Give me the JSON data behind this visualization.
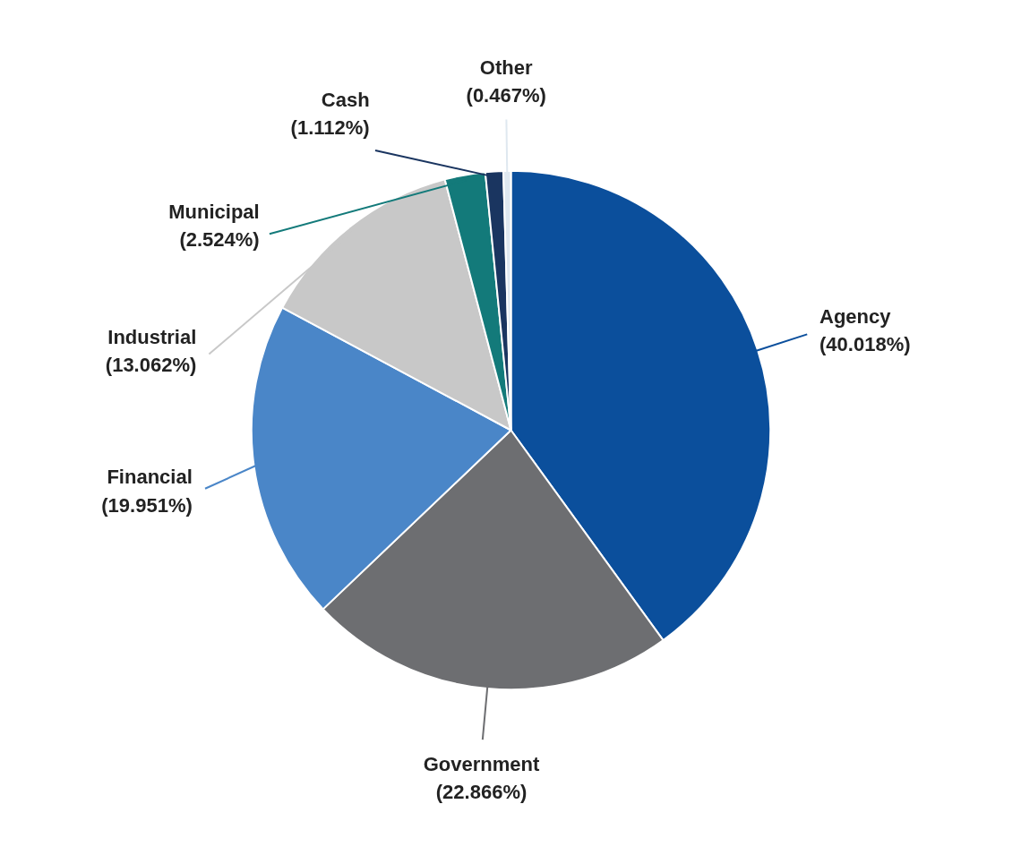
{
  "chart_data": {
    "type": "pie",
    "categories": [
      "Agency",
      "Government",
      "Financial",
      "Industrial",
      "Municipal",
      "Cash",
      "Other"
    ],
    "values": [
      40.018,
      22.866,
      19.951,
      13.062,
      2.524,
      1.112,
      0.467
    ],
    "value_labels": [
      "(40.018%)",
      "(22.866%)",
      "(19.951%)",
      "(13.062%)",
      "(2.524%)",
      "(1.112%)",
      "(0.467%)"
    ],
    "colors": [
      "#0b4f9c",
      "#6d6e71",
      "#4a86c8",
      "#c8c8c8",
      "#137a7a",
      "#1a3560",
      "#dfe8f0"
    ]
  }
}
